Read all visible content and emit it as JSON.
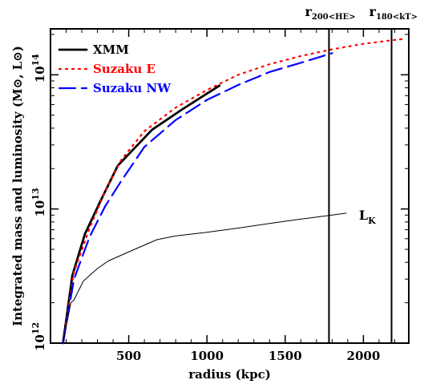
{
  "chart_data": {
    "type": "line",
    "xlabel": "radius (kpc)",
    "ylabel": "Integrated mass and luminosity (M⊙, L⊙)",
    "xlim": [
      0,
      2290
    ],
    "ylim": [
      1000000000000.0,
      220000000000000.0
    ],
    "yscale": "log",
    "x_ticks": [
      {
        "value": 500,
        "label": "500"
      },
      {
        "value": 1000,
        "label": "1000"
      },
      {
        "value": 1500,
        "label": "1500"
      },
      {
        "value": 2000,
        "label": "2000"
      }
    ],
    "y_ticks": [
      {
        "value": 1000000000000.0,
        "label": "10",
        "exp": "12"
      },
      {
        "value": 10000000000000.0,
        "label": "10",
        "exp": "13"
      },
      {
        "value": 100000000000000.0,
        "label": "10",
        "exp": "14"
      }
    ],
    "legend": {
      "position": "top-left"
    },
    "series": [
      {
        "name": "XMM",
        "color": "#000000",
        "style": "solid-thick",
        "x": [
          80,
          140,
          220,
          320,
          430,
          650,
          850,
          1080
        ],
        "y": [
          1000000000000.0,
          3200000000000.0,
          6500000000000.0,
          11500000000000.0,
          21000000000000.0,
          39000000000000.0,
          56000000000000.0,
          83000000000000.0
        ]
      },
      {
        "name": "Suzaku E",
        "color": "#ff0000",
        "style": "dotted",
        "x": [
          80,
          150,
          250,
          350,
          450,
          600,
          800,
          1000,
          1200,
          1400,
          1600,
          1800,
          2000,
          2200,
          2260
        ],
        "y": [
          1000000000000.0,
          3400000000000.0,
          7200000000000.0,
          13500000000000.0,
          23000000000000.0,
          38000000000000.0,
          57000000000000.0,
          77000000000000.0,
          100000000000000.0,
          120000000000000.0,
          138000000000000.0,
          155000000000000.0,
          170000000000000.0,
          182000000000000.0,
          185000000000000.0
        ]
      },
      {
        "name": "Suzaku NW",
        "color": "#0000ff",
        "style": "dashed",
        "x": [
          80,
          150,
          250,
          350,
          450,
          600,
          800,
          1000,
          1200,
          1400,
          1600,
          1800
        ],
        "y": [
          1000000000000.0,
          3000000000000.0,
          6200000000000.0,
          10500000000000.0,
          16000000000000.0,
          29000000000000.0,
          46000000000000.0,
          65000000000000.0,
          84000000000000.0,
          105000000000000.0,
          123000000000000.0,
          145000000000000.0
        ]
      },
      {
        "name": "L_K",
        "color": "#000000",
        "style": "solid-thin",
        "x": [
          80,
          130,
          150,
          210,
          300,
          370,
          410,
          520,
          680,
          800,
          1000,
          1200,
          1400,
          1600,
          1800,
          1890
        ],
        "y": [
          1000000000000.0,
          2000000000000.0,
          2100000000000.0,
          2900000000000.0,
          3600000000000.0,
          4100000000000.0,
          4300000000000.0,
          4900000000000.0,
          5900000000000.0,
          6300000000000.0,
          6700000000000.0,
          7200000000000.0,
          7800000000000.0,
          8400000000000.0,
          9000000000000.0,
          9300000000000.0
        ]
      }
    ],
    "curve_label": {
      "text": "L",
      "sub": "K"
    },
    "vlines": [
      {
        "x": 1780,
        "label": "r",
        "sub": "200<HE>"
      },
      {
        "x": 2180,
        "label": "r",
        "sub": "180<kT>"
      }
    ]
  }
}
